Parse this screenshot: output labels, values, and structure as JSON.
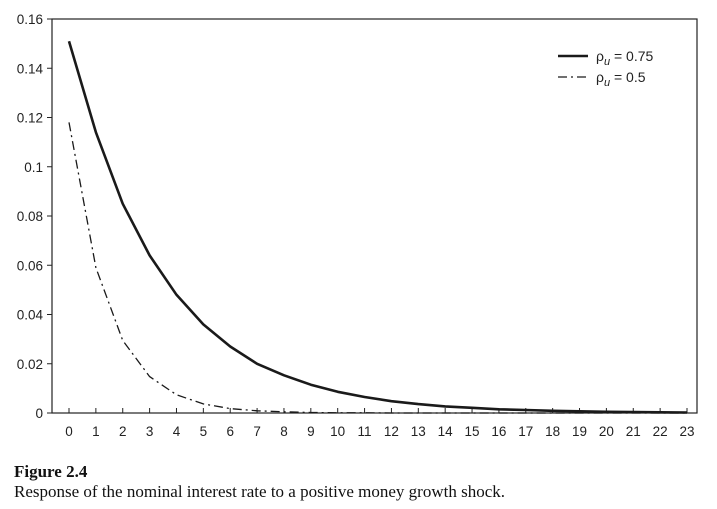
{
  "chart_data": {
    "type": "line",
    "x": [
      0,
      1,
      2,
      3,
      4,
      5,
      6,
      7,
      8,
      9,
      10,
      11,
      12,
      13,
      14,
      15,
      16,
      17,
      18,
      19,
      20,
      21,
      22,
      23
    ],
    "xlim": [
      0,
      23
    ],
    "ylim": [
      0,
      0.16
    ],
    "yticks": [
      "0",
      "0.02",
      "0.04",
      "0.06",
      "0.08",
      "0.1",
      "0.12",
      "0.14",
      "0.16"
    ],
    "xticks": [
      "0",
      "1",
      "2",
      "3",
      "4",
      "5",
      "6",
      "7",
      "8",
      "9",
      "10",
      "11",
      "12",
      "13",
      "14",
      "15",
      "16",
      "17",
      "18",
      "19",
      "20",
      "21",
      "22",
      "23"
    ],
    "grid": false,
    "legend_position": "top-right",
    "series": [
      {
        "name": "ρu = 0.75",
        "name_base": "ρ",
        "name_sub": "u",
        "name_value": " = 0.75",
        "style": "solid",
        "values": [
          0.151,
          0.114,
          0.085,
          0.064,
          0.048,
          0.036,
          0.027,
          0.02,
          0.0153,
          0.0115,
          0.0086,
          0.0065,
          0.0048,
          0.0036,
          0.0027,
          0.0021,
          0.0015,
          0.0012,
          0.0009,
          0.0007,
          0.0005,
          0.0004,
          0.0003,
          0.0002
        ]
      },
      {
        "name": "ρu = 0.5",
        "name_base": "ρ",
        "name_sub": "u",
        "name_value": " = 0.5",
        "style": "dashdot",
        "values": [
          0.118,
          0.059,
          0.0295,
          0.0148,
          0.0074,
          0.0037,
          0.0018,
          0.0009,
          0.0005,
          0.0002,
          0.0001,
          0.0001,
          0.0,
          0.0,
          0.0,
          0.0,
          0.0,
          0.0,
          0.0,
          0.0,
          0.0,
          0.0,
          0.0,
          0.0
        ]
      }
    ]
  },
  "figure": {
    "title": "Figure 2.4",
    "caption": "Response of the nominal interest rate to a positive money growth shock."
  },
  "colors": {
    "line": "#1a1a1a",
    "axis": "#222222"
  }
}
